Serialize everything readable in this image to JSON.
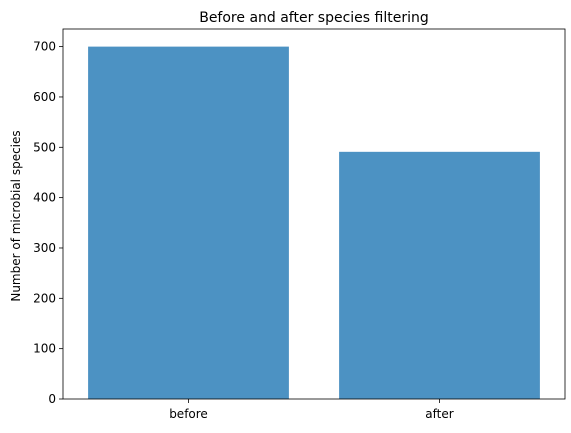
{
  "chart_data": {
    "type": "bar",
    "title": "Before and after species filtering",
    "xlabel": "",
    "ylabel": "Number of microbial species",
    "categories": [
      "before",
      "after"
    ],
    "values": [
      700,
      491
    ],
    "ylim": [
      0,
      735
    ],
    "yticks": [
      0,
      100,
      200,
      300,
      400,
      500,
      600,
      700
    ],
    "bar_color": "#4c92c3",
    "grid": false,
    "legend": "none"
  }
}
